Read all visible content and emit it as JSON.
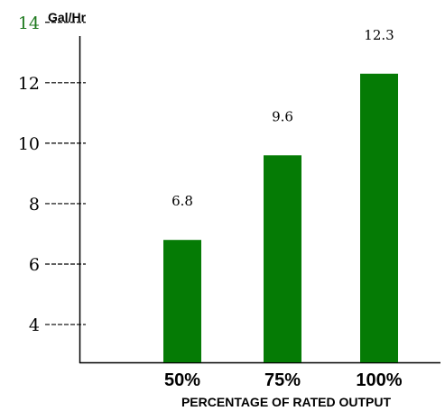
{
  "chart_data": {
    "type": "bar",
    "ylabel": "Gal/Hr",
    "xlabel": "PERCENTAGE OF RATED OUTPUT",
    "categories": [
      "50%",
      "75%",
      "100%"
    ],
    "values": [
      6.8,
      9.6,
      12.3
    ],
    "data_labels": [
      "6.8",
      "9.6",
      "12.3"
    ],
    "yticks": [
      {
        "value": 4,
        "label": "4"
      },
      {
        "value": 6,
        "label": "6"
      },
      {
        "value": 8,
        "label": "8"
      },
      {
        "value": 10,
        "label": "10"
      },
      {
        "value": 12,
        "label": "12"
      },
      {
        "value": 14,
        "label": "14"
      }
    ],
    "ylim": [
      2.75,
      14.5
    ],
    "grid": false,
    "legend": "none",
    "colors": {
      "bar": "#057b05",
      "axis": "#000000",
      "highlight_tick": "#1f7a1f",
      "text": "#000000"
    },
    "highlight_tick_value": 14
  }
}
